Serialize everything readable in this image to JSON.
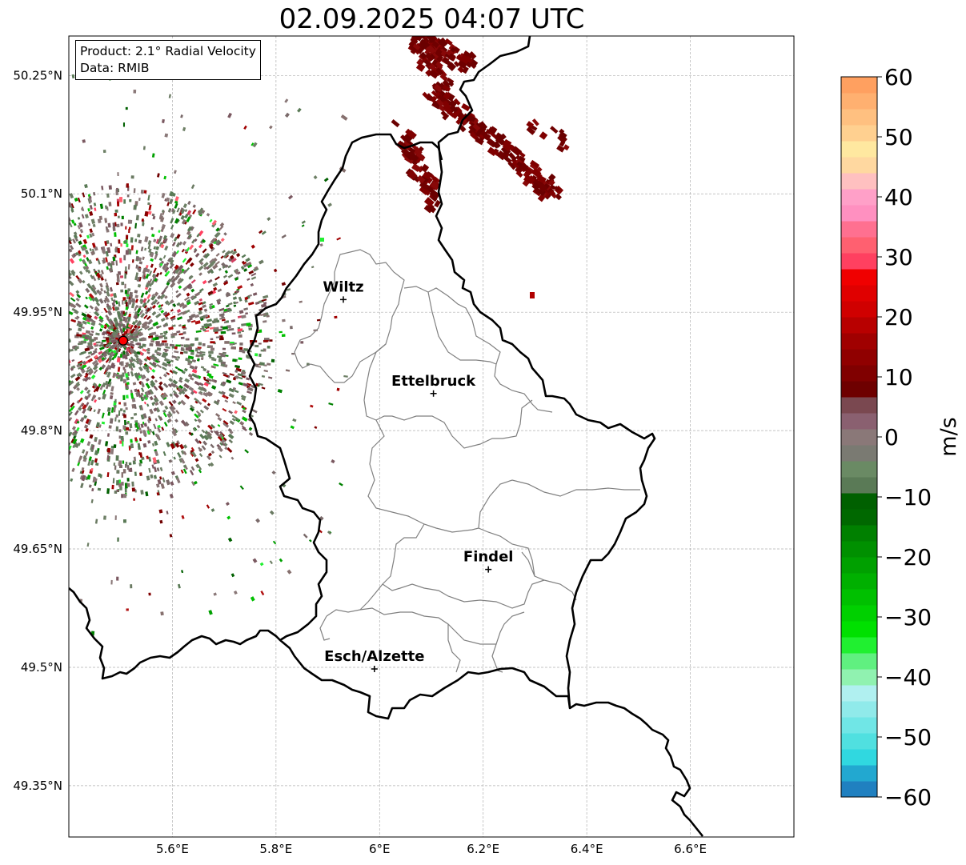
{
  "title": "02.09.2025 04:07 UTC",
  "info": {
    "product": "Product: 2.1° Radial Velocity",
    "data": "Data: RMIB"
  },
  "extent": {
    "lon_min": 5.4,
    "lon_max": 6.8,
    "lat_min": 49.285,
    "lat_max": 50.3
  },
  "lat_ticks": [
    {
      "value": 50.25,
      "label": "50.25°N"
    },
    {
      "value": 50.1,
      "label": "50.1°N"
    },
    {
      "value": 49.95,
      "label": "49.95°N"
    },
    {
      "value": 49.8,
      "label": "49.8°N"
    },
    {
      "value": 49.65,
      "label": "49.65°N"
    },
    {
      "value": 49.5,
      "label": "49.5°N"
    },
    {
      "value": 49.35,
      "label": "49.35°N"
    }
  ],
  "lon_ticks": [
    {
      "value": 5.6,
      "label": "5.6°E"
    },
    {
      "value": 5.8,
      "label": "5.8°E"
    },
    {
      "value": 6.0,
      "label": "6°E"
    },
    {
      "value": 6.2,
      "label": "6.2°E"
    },
    {
      "value": 6.4,
      "label": "6.4°E"
    },
    {
      "value": 6.6,
      "label": "6.6°E"
    }
  ],
  "cities": [
    {
      "name": "Wiltz",
      "lon": 5.93,
      "lat": 49.966
    },
    {
      "name": "Ettelbruck",
      "lon": 6.104,
      "lat": 49.847
    },
    {
      "name": "Findel",
      "lon": 6.21,
      "lat": 49.624
    },
    {
      "name": "Esch/Alzette",
      "lon": 5.99,
      "lat": 49.498
    }
  ],
  "radar_site": {
    "lon": 5.505,
    "lat": 49.914
  },
  "colorbar": {
    "label": "m/s",
    "min": -60,
    "max": 60,
    "ticks": [
      {
        "value": 60,
        "label": "60"
      },
      {
        "value": 50,
        "label": "50"
      },
      {
        "value": 40,
        "label": "40"
      },
      {
        "value": 30,
        "label": "30"
      },
      {
        "value": 20,
        "label": "20"
      },
      {
        "value": 10,
        "label": "10"
      },
      {
        "value": 0,
        "label": "0"
      },
      {
        "value": -10,
        "label": "−10"
      },
      {
        "value": -20,
        "label": "−20"
      },
      {
        "value": -30,
        "label": "−30"
      },
      {
        "value": -40,
        "label": "−40"
      },
      {
        "value": -50,
        "label": "−50"
      },
      {
        "value": -60,
        "label": "−60"
      }
    ],
    "colors": [
      "#2080c0",
      "#22a8d0",
      "#30d8e0",
      "#50e0e0",
      "#70e6e6",
      "#90eaea",
      "#b0f0f0",
      "#90f2b0",
      "#60f080",
      "#20f030",
      "#00e000",
      "#00d000",
      "#00c000",
      "#00b000",
      "#00a000",
      "#009000",
      "#008000",
      "#006800",
      "#006000",
      "#5a7a56",
      "#6a8a64",
      "#7a7a72",
      "#8a7878",
      "#8a6070",
      "#7a4850",
      "#6e0000",
      "#800000",
      "#900000",
      "#a00000",
      "#b80000",
      "#d00000",
      "#e00000",
      "#f00000",
      "#ff4060",
      "#ff6070",
      "#ff7090",
      "#ff90c0",
      "#ffa0c8",
      "#ffc0c0",
      "#ffd8a0",
      "#ffe8a0",
      "#ffd090",
      "#ffc080",
      "#ffb070",
      "#ffa060"
    ]
  }
}
